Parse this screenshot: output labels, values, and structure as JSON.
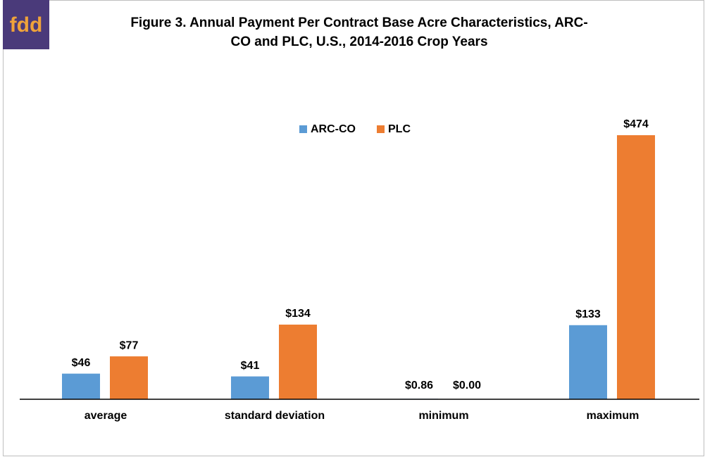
{
  "logo": "fdd",
  "chart_data": {
    "type": "bar",
    "title": [
      "Figure 3.  Annual Payment Per Contract Base Acre Characteristics, ARC-",
      "CO and PLC, U.S., 2014-2016 Crop Years"
    ],
    "categories": [
      "average",
      "standard deviation",
      "minimum",
      "maximum"
    ],
    "series": [
      {
        "name": "ARC-CO",
        "color": "#5b9bd5",
        "values": [
          46,
          41,
          0.86,
          133
        ],
        "value_labels": [
          "$46",
          "$41",
          "$0.86",
          "$133"
        ]
      },
      {
        "name": "PLC",
        "color": "#ed7d31",
        "values": [
          77,
          134,
          0,
          474
        ],
        "value_labels": [
          "$77",
          "$134",
          "$0.00",
          "$474"
        ]
      }
    ],
    "legend": "top-center"
  }
}
